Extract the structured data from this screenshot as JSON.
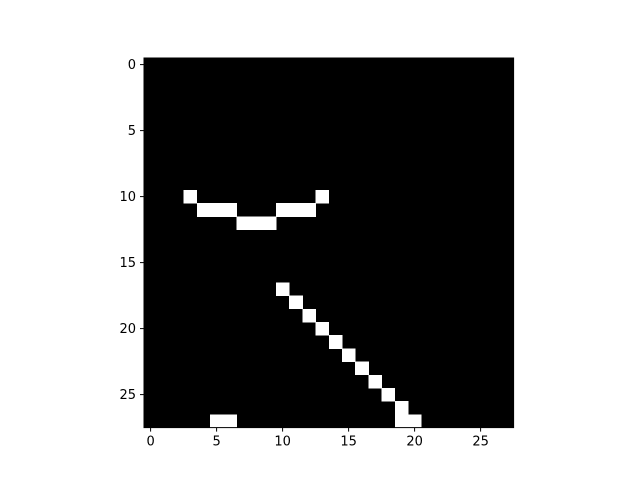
{
  "chart_data": {
    "type": "heatmap",
    "title": "",
    "xlabel": "",
    "ylabel": "",
    "rows": 28,
    "cols": 28,
    "xlim": [
      -0.5,
      27.5
    ],
    "ylim": [
      27.5,
      -0.5
    ],
    "x_ticks": [
      0,
      5,
      10,
      15,
      20,
      25
    ],
    "y_ticks": [
      0,
      5,
      10,
      15,
      20,
      25
    ],
    "colormap": "gray",
    "value_range": [
      0,
      1
    ],
    "background_value": 0,
    "grid": false,
    "legend": "none",
    "colors": {
      "low": "#000000",
      "high": "#ffffff"
    },
    "nonzero_cells": [
      {
        "row": 10,
        "col": 3,
        "value": 1
      },
      {
        "row": 10,
        "col": 13,
        "value": 1
      },
      {
        "row": 11,
        "col": 4,
        "value": 1
      },
      {
        "row": 11,
        "col": 5,
        "value": 1
      },
      {
        "row": 11,
        "col": 6,
        "value": 1
      },
      {
        "row": 11,
        "col": 10,
        "value": 1
      },
      {
        "row": 11,
        "col": 11,
        "value": 1
      },
      {
        "row": 11,
        "col": 12,
        "value": 1
      },
      {
        "row": 12,
        "col": 7,
        "value": 1
      },
      {
        "row": 12,
        "col": 8,
        "value": 1
      },
      {
        "row": 12,
        "col": 9,
        "value": 1
      },
      {
        "row": 17,
        "col": 10,
        "value": 1
      },
      {
        "row": 18,
        "col": 11,
        "value": 1
      },
      {
        "row": 19,
        "col": 12,
        "value": 1
      },
      {
        "row": 20,
        "col": 13,
        "value": 1
      },
      {
        "row": 21,
        "col": 14,
        "value": 1
      },
      {
        "row": 22,
        "col": 15,
        "value": 1
      },
      {
        "row": 23,
        "col": 16,
        "value": 1
      },
      {
        "row": 24,
        "col": 17,
        "value": 1
      },
      {
        "row": 25,
        "col": 18,
        "value": 1
      },
      {
        "row": 26,
        "col": 19,
        "value": 1
      },
      {
        "row": 27,
        "col": 5,
        "value": 1
      },
      {
        "row": 27,
        "col": 6,
        "value": 1
      },
      {
        "row": 27,
        "col": 19,
        "value": 1
      },
      {
        "row": 27,
        "col": 20,
        "value": 1
      }
    ]
  }
}
